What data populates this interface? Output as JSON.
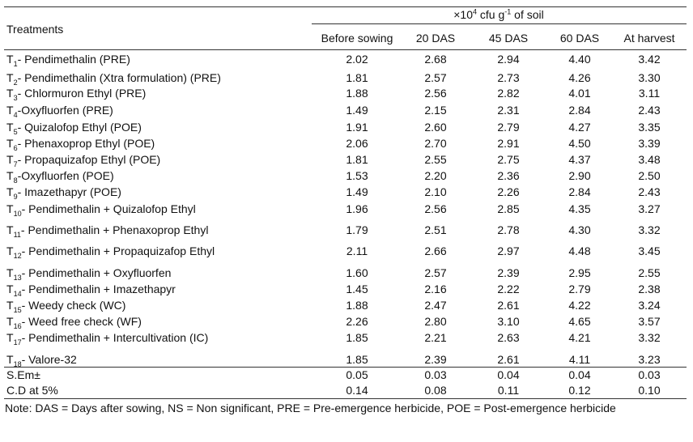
{
  "header": {
    "unit": [
      "×10",
      "4",
      " cfu g",
      "-1",
      " of soil"
    ]
  },
  "columns": [
    "Treatments",
    "Before sowing",
    "20 DAS",
    "45 DAS",
    "60 DAS",
    "At harvest"
  ],
  "rows": [
    {
      "t": "T",
      "n": "1",
      "name": "- Pendimethalin (PRE)",
      "values": [
        "2.02",
        "2.68",
        "2.94",
        "4.40",
        "3.42"
      ]
    },
    {
      "t": "T",
      "n": "2",
      "name": "- Pendimethalin (Xtra formulation) (PRE)",
      "values": [
        "1.81",
        "2.57",
        "2.73",
        "4.26",
        "3.30"
      ]
    },
    {
      "t": "T",
      "n": "3",
      "name": "- Chlormuron Ethyl (PRE)",
      "values": [
        "1.88",
        "2.56",
        "2.82",
        "4.01",
        "3.11"
      ]
    },
    {
      "t": "T",
      "n": "4",
      "name": "-Oxyfluorfen (PRE)",
      "values": [
        "1.49",
        "2.15",
        "2.31",
        "2.84",
        "2.43"
      ]
    },
    {
      "t": "T",
      "n": "5",
      "name": "- Quizalofop Ethyl (POE)",
      "values": [
        "1.91",
        "2.60",
        "2.79",
        "4.27",
        "3.35"
      ]
    },
    {
      "t": "T",
      "n": "6",
      "name": "- Phenaxoprop Ethyl (POE)",
      "values": [
        "2.06",
        "2.70",
        "2.91",
        "4.50",
        "3.39"
      ]
    },
    {
      "t": "T",
      "n": "7",
      "name": "- Propaquizafop Ethyl (POE)",
      "values": [
        "1.81",
        "2.55",
        "2.75",
        "4.37",
        "3.48"
      ]
    },
    {
      "t": "T",
      "n": "8",
      "name": "-Oxyfluorfen (POE)",
      "values": [
        "1.53",
        "2.20",
        "2.36",
        "2.90",
        "2.50"
      ]
    },
    {
      "t": "T",
      "n": "9",
      "name": "- Imazethapyr (POE)",
      "values": [
        "1.49",
        "2.10",
        "2.26",
        "2.84",
        "2.43"
      ]
    },
    {
      "t": "T",
      "n": "10",
      "name": "- Pendimethalin + Quizalofop Ethyl",
      "values": [
        "1.96",
        "2.56",
        "2.85",
        "4.35",
        "3.27"
      ]
    },
    {
      "t": "T",
      "n": "11",
      "name": "-  Pendimethalin + Phenaxoprop Ethyl",
      "values": [
        "1.79",
        "2.51",
        "2.78",
        "4.30",
        "3.32"
      ]
    },
    {
      "t": "T",
      "n": "12",
      "name": "- Pendimethalin + Propaquizafop Ethyl",
      "values": [
        "2.11",
        "2.66",
        "2.97",
        "4.48",
        "3.45"
      ]
    },
    {
      "t": "T",
      "n": "13",
      "name": "- Pendimethalin + Oxyfluorfen",
      "values": [
        "1.60",
        "2.57",
        "2.39",
        "2.95",
        "2.55"
      ]
    },
    {
      "t": "T",
      "n": "14",
      "name": "- Pendimethalin + Imazethapyr",
      "values": [
        "1.45",
        "2.16",
        "2.22",
        "2.79",
        "2.38"
      ]
    },
    {
      "t": "T",
      "n": "15",
      "name": "- Weedy check (WC)",
      "values": [
        "1.88",
        "2.47",
        "2.61",
        "4.22",
        "3.24"
      ]
    },
    {
      "t": "T",
      "n": "16",
      "name": "- Weed free check (WF)",
      "values": [
        "2.26",
        "2.80",
        "3.10",
        "4.65",
        "3.57"
      ]
    },
    {
      "t": "T",
      "n": "17",
      "name": "- Pendimethalin + Intercultivation (IC)",
      "values": [
        "1.85",
        "2.21",
        "2.63",
        "4.21",
        "3.32"
      ]
    },
    {
      "t": "T",
      "n": "18",
      "name": "- Valore-32",
      "values": [
        "1.85",
        "2.39",
        "2.61",
        "4.11",
        "3.23"
      ]
    }
  ],
  "stats": [
    {
      "name": "S.Em±",
      "values": [
        "0.05",
        "0.03",
        "0.04",
        "0.04",
        "0.03"
      ]
    },
    {
      "name": "C.D at 5%",
      "values": [
        "0.14",
        "0.08",
        "0.11",
        "0.12",
        "0.10"
      ]
    }
  ],
  "note": "Note: DAS = Days after sowing, NS = Non significant, PRE = Pre-emergence herbicide, POE = Post-emergence herbicide"
}
